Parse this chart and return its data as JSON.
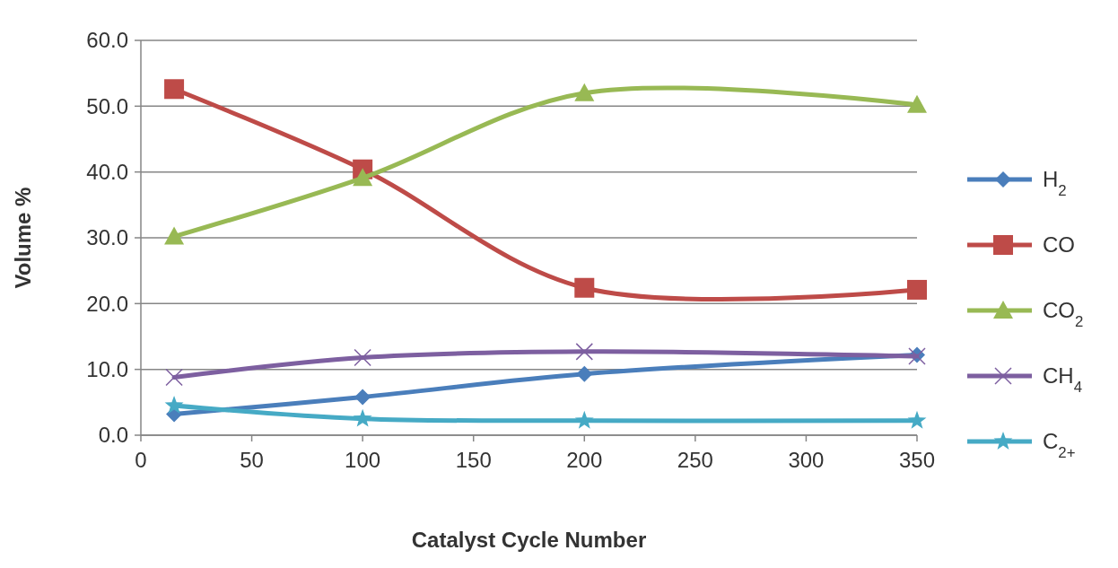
{
  "chart_data": {
    "type": "line",
    "xlabel": "Catalyst Cycle Number",
    "ylabel": "Volume %",
    "x": [
      15,
      100,
      200,
      350
    ],
    "series": [
      {
        "name": "H$_{2}$",
        "color": "#4a7ebb",
        "marker": "diamond",
        "values": [
          3.2,
          5.8,
          9.3,
          12.2
        ]
      },
      {
        "name": "CO",
        "color": "#be4b48",
        "marker": "square",
        "values": [
          52.6,
          40.4,
          22.4,
          22.1
        ]
      },
      {
        "name": "CO$_{2}$",
        "color": "#98b954",
        "marker": "triangle",
        "values": [
          30.2,
          39.1,
          52.0,
          50.2
        ]
      },
      {
        "name": "CH$_{4}$",
        "color": "#7d5fa0",
        "marker": "cross",
        "values": [
          8.8,
          11.8,
          12.7,
          12.0
        ]
      },
      {
        "name": "C$_{2+}$",
        "color": "#46aac5",
        "marker": "star",
        "values": [
          4.5,
          2.5,
          2.2,
          2.2
        ]
      }
    ],
    "xlim": [
      0,
      350
    ],
    "xticks": [
      0,
      50,
      100,
      150,
      200,
      250,
      300,
      350
    ],
    "ylim": [
      0,
      60
    ],
    "yticks": [
      {
        "value": 0,
        "label": "0.0"
      },
      {
        "value": 10,
        "label": "10.0"
      },
      {
        "value": 20,
        "label": "20.0"
      },
      {
        "value": 30,
        "label": "30.0"
      },
      {
        "value": 40,
        "label": "40.0"
      },
      {
        "value": 50,
        "label": "50.0"
      },
      {
        "value": 60,
        "label": "60.0"
      }
    ],
    "grid": "y",
    "legend": "right",
    "line_style": "solid"
  }
}
